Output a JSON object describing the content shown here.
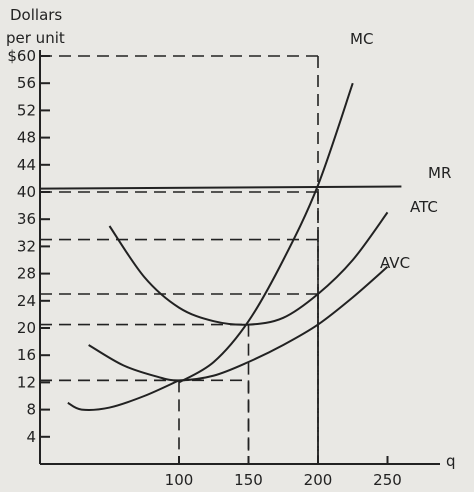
{
  "chart_data": {
    "type": "line",
    "ylabel_line1": "Dollars",
    "ylabel_line2": "per unit",
    "xlabel": "q",
    "ylim": [
      0,
      60
    ],
    "xlim": [
      0,
      250
    ],
    "yticks": [
      {
        "value": 60,
        "label": "$60"
      },
      {
        "value": 56,
        "label": "56"
      },
      {
        "value": 52,
        "label": "52"
      },
      {
        "value": 48,
        "label": "48"
      },
      {
        "value": 44,
        "label": "44"
      },
      {
        "value": 40,
        "label": "40"
      },
      {
        "value": 36,
        "label": "36"
      },
      {
        "value": 32,
        "label": "32"
      },
      {
        "value": 28,
        "label": "28"
      },
      {
        "value": 24,
        "label": "24"
      },
      {
        "value": 20,
        "label": "20"
      },
      {
        "value": 16,
        "label": "16"
      },
      {
        "value": 12,
        "label": "12"
      },
      {
        "value": 8,
        "label": "8"
      },
      {
        "value": 4,
        "label": "4"
      }
    ],
    "xticks": [
      {
        "value": 100,
        "label": "100"
      },
      {
        "value": 150,
        "label": "150"
      },
      {
        "value": 200,
        "label": "200"
      },
      {
        "value": 250,
        "label": "250"
      }
    ],
    "series": [
      {
        "name": "MC",
        "x": [
          100,
          125,
          150,
          175,
          200,
          225
        ],
        "y": [
          12,
          15,
          21,
          30,
          41,
          56
        ]
      },
      {
        "name": "MR",
        "x": [
          0,
          260
        ],
        "y": [
          40.5,
          40.8
        ]
      },
      {
        "name": "ATC",
        "x": [
          50,
          75,
          100,
          125,
          150,
          175,
          200,
          225,
          250
        ],
        "y": [
          35,
          27.5,
          23,
          21,
          20.5,
          21.5,
          25,
          30,
          37
        ]
      },
      {
        "name": "AVC",
        "x": [
          35,
          60,
          85,
          100,
          125,
          150,
          175,
          200,
          225,
          250
        ],
        "y": [
          17.5,
          14.5,
          12.8,
          12.3,
          13,
          15,
          17.5,
          20.5,
          24.5,
          29
        ]
      },
      {
        "name": "",
        "x": [
          20,
          30,
          50,
          75,
          100
        ],
        "y": [
          9,
          8,
          8.3,
          10,
          12.3
        ]
      }
    ],
    "reference_lines": [
      {
        "x": 200,
        "y": 60
      },
      {
        "x": 200,
        "y": 40
      },
      {
        "x": 200,
        "y": 33
      },
      {
        "x": 200,
        "y": 25
      },
      {
        "x": 150,
        "y": 20.5
      },
      {
        "x": 100,
        "y": 12.3
      },
      {
        "x": 150,
        "y": 12.3
      }
    ]
  }
}
